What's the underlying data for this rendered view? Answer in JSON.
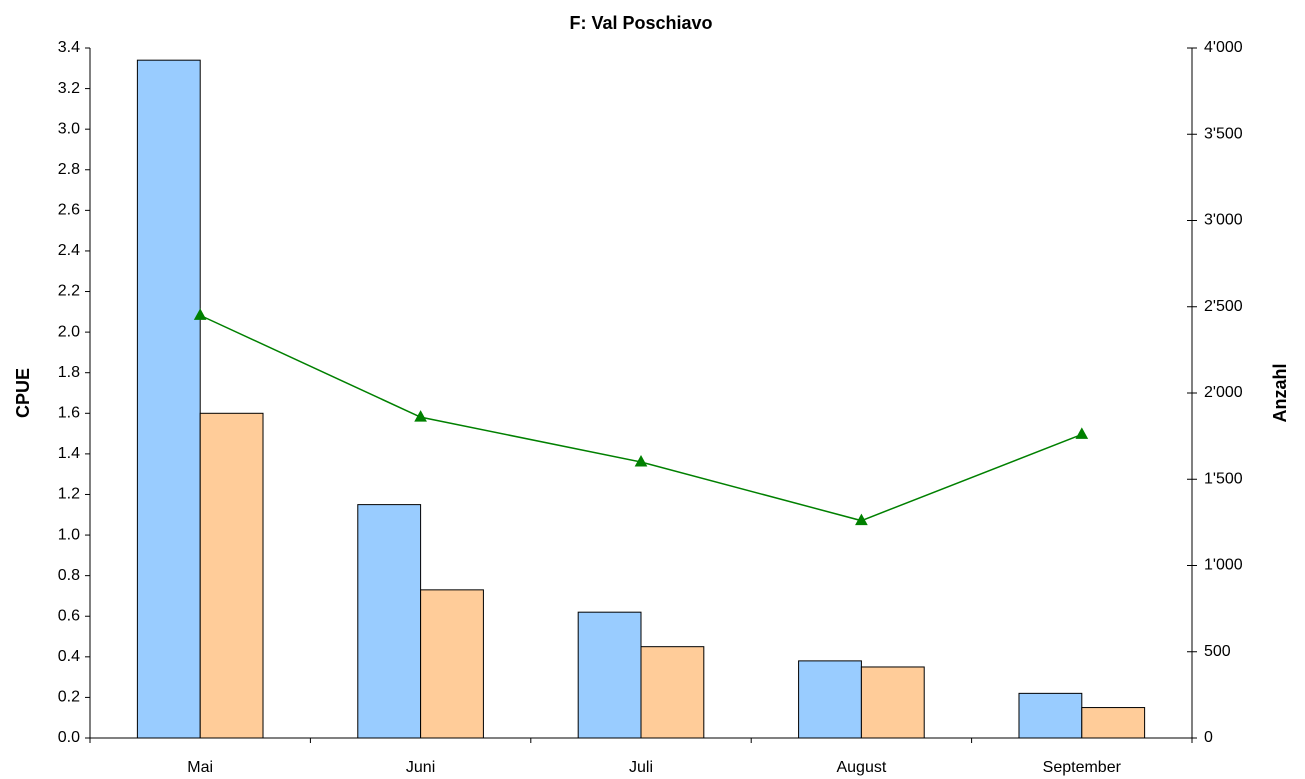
{
  "chart_data": {
    "type": "bar",
    "title": "F: Val Poschiavo",
    "y_label": "CPUE",
    "y2_label": "Anzahl",
    "categories": [
      "Mai",
      "Juni",
      "Juli",
      "August",
      "September"
    ],
    "series": [
      {
        "type": "bar",
        "color": "#99ccff",
        "values": [
          3.34,
          1.15,
          0.62,
          0.38,
          0.22
        ]
      },
      {
        "type": "bar",
        "color": "#ffcc99",
        "values": [
          1.6,
          0.73,
          0.45,
          0.35,
          0.15
        ]
      },
      {
        "type": "line",
        "axis": "y2",
        "color": "#008000",
        "values": [
          2450,
          1860,
          1600,
          1260,
          1760
        ]
      }
    ],
    "ylim": [
      0,
      3.4
    ],
    "yticks": [
      {
        "value": 0,
        "label": "0.0"
      },
      0.2,
      0.4,
      0.6,
      0.8,
      {
        "value": 1,
        "label": "1.0"
      },
      1.2,
      1.4,
      1.6,
      1.8,
      {
        "value": 2,
        "label": "2.0"
      },
      2.2,
      2.4,
      2.6,
      2.8,
      {
        "value": 3,
        "label": "3.0"
      },
      3.2,
      3.4
    ],
    "y2lim": [
      0,
      4000
    ],
    "y2ticks": [
      0,
      500,
      {
        "value": 1000,
        "label": "1'000"
      },
      {
        "value": 1500,
        "label": "1'500"
      },
      {
        "value": 2000,
        "label": "2'000"
      },
      {
        "value": 2500,
        "label": "2'500"
      },
      {
        "value": 3000,
        "label": "3'000"
      },
      {
        "value": 3500,
        "label": "3'500"
      },
      {
        "value": 4000,
        "label": "4'000"
      }
    ],
    "grid": false
  }
}
